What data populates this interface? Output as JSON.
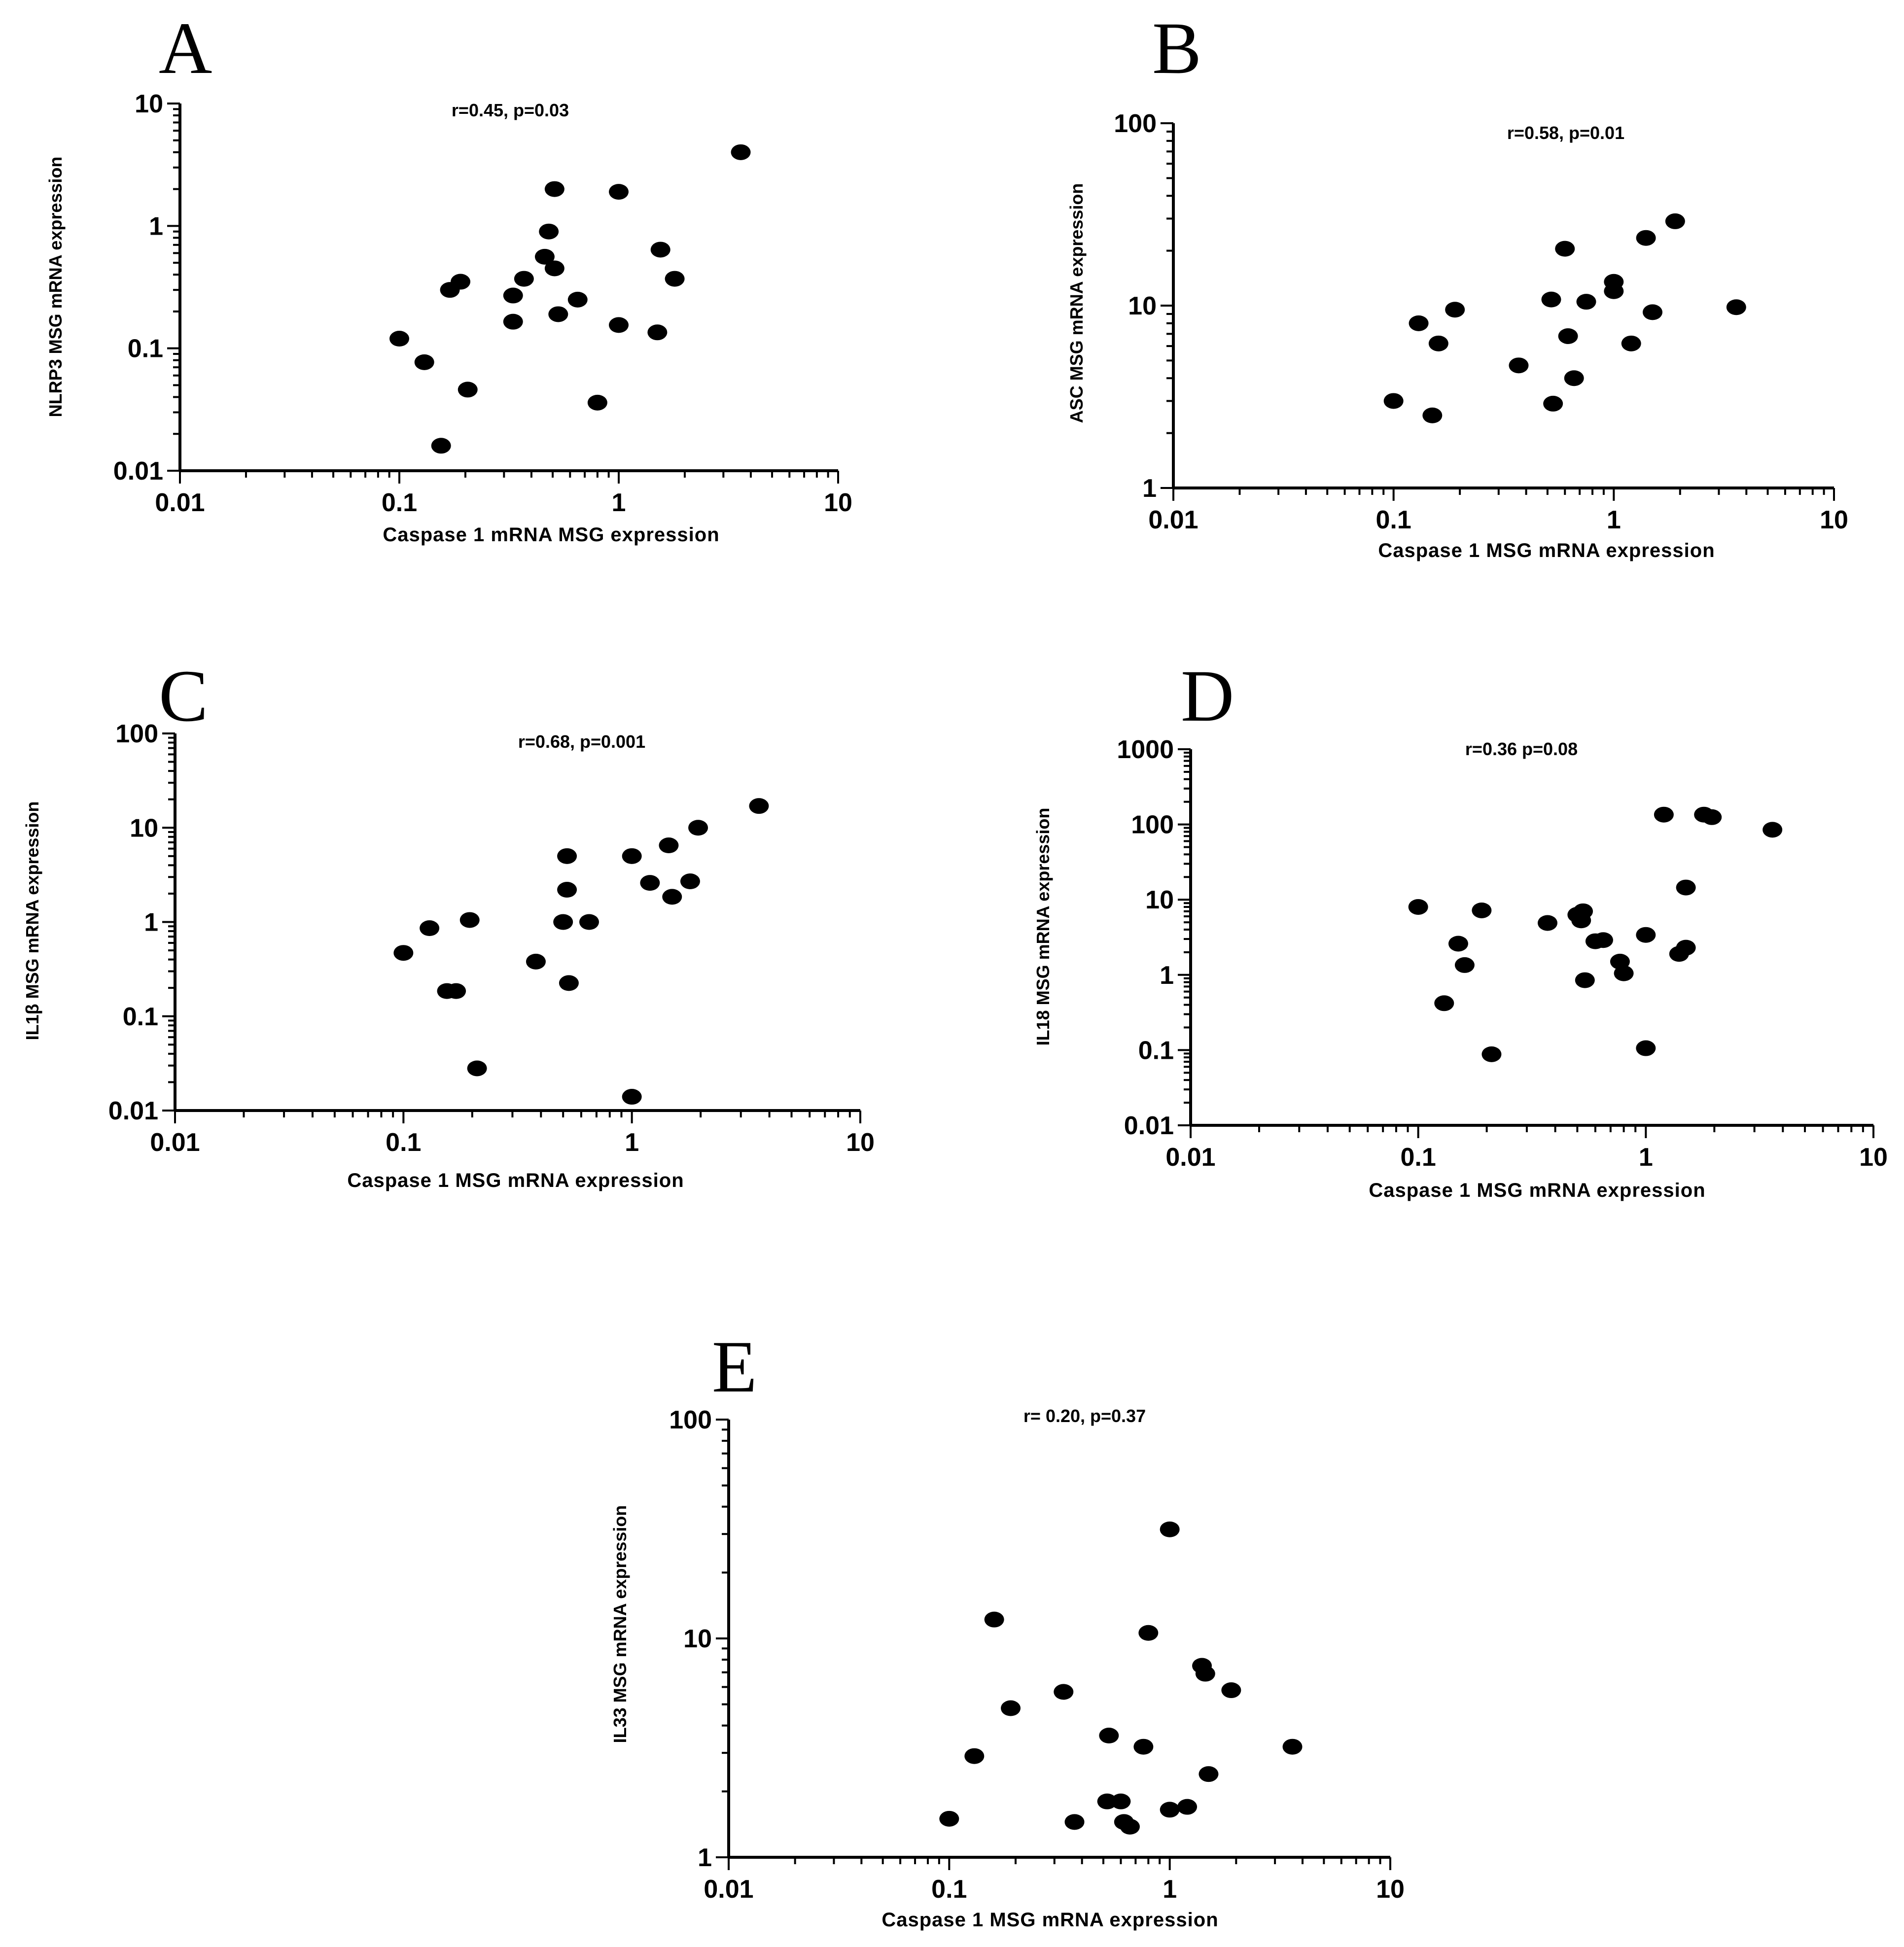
{
  "figure": {
    "panels": [
      "A",
      "B",
      "C",
      "D",
      "E"
    ]
  },
  "chart_data": [
    {
      "panel": "A",
      "type": "scatter",
      "stat_text": "r=0.45,  p=0.03",
      "xlabel": "Caspase 1 mRNA MSG expression",
      "ylabel": "NLRP3 MSG mRNA expression",
      "xscale": "log",
      "yscale": "log",
      "xlim": [
        0.01,
        10
      ],
      "ylim": [
        0.01,
        10
      ],
      "x_ticks": [
        "0.01",
        "0.1",
        "1",
        "10"
      ],
      "y_ticks": [
        "0.01",
        "0.1",
        "1",
        "10"
      ],
      "points": [
        [
          0.1,
          0.12
        ],
        [
          0.13,
          0.077
        ],
        [
          0.155,
          0.016
        ],
        [
          0.17,
          0.3
        ],
        [
          0.19,
          0.35
        ],
        [
          0.205,
          0.046
        ],
        [
          0.33,
          0.27
        ],
        [
          0.33,
          0.165
        ],
        [
          0.37,
          0.37
        ],
        [
          0.46,
          0.56
        ],
        [
          0.48,
          0.9
        ],
        [
          0.51,
          2.0
        ],
        [
          0.51,
          0.45
        ],
        [
          0.53,
          0.19
        ],
        [
          0.65,
          0.25
        ],
        [
          0.8,
          0.036
        ],
        [
          1.0,
          1.9
        ],
        [
          1.0,
          0.155
        ],
        [
          1.5,
          0.135
        ],
        [
          1.55,
          0.64
        ],
        [
          1.8,
          0.37
        ],
        [
          3.6,
          4.0
        ]
      ]
    },
    {
      "panel": "B",
      "type": "scatter",
      "stat_text": "r=0.58, p=0.01",
      "xlabel": "Caspase 1 MSG mRNA expression",
      "ylabel": "ASC MSG mRNA expression",
      "xscale": "log",
      "yscale": "log",
      "xlim": [
        0.01,
        10
      ],
      "ylim": [
        1,
        100
      ],
      "x_ticks": [
        "0.01",
        "0.1",
        "1",
        "10"
      ],
      "y_ticks": [
        "1",
        "10",
        "100"
      ],
      "points": [
        [
          0.1,
          3.0
        ],
        [
          0.13,
          8.0
        ],
        [
          0.15,
          2.5
        ],
        [
          0.16,
          6.2
        ],
        [
          0.19,
          9.5
        ],
        [
          0.37,
          4.7
        ],
        [
          0.52,
          10.8
        ],
        [
          0.53,
          2.9
        ],
        [
          0.6,
          20.5
        ],
        [
          0.62,
          6.8
        ],
        [
          0.66,
          4.0
        ],
        [
          0.75,
          10.5
        ],
        [
          1.0,
          13.5
        ],
        [
          1.0,
          12.0
        ],
        [
          1.2,
          6.2
        ],
        [
          1.4,
          23.5
        ],
        [
          1.5,
          9.2
        ],
        [
          1.9,
          29.0
        ],
        [
          3.6,
          9.8
        ]
      ]
    },
    {
      "panel": "C",
      "type": "scatter",
      "stat_text": "r=0.68, p=0.001",
      "xlabel": "Caspase 1 MSG mRNA expression",
      "ylabel": "IL1β MSG mRNA expression",
      "xscale": "log",
      "yscale": "log",
      "xlim": [
        0.01,
        10
      ],
      "ylim": [
        0.01,
        100
      ],
      "x_ticks": [
        "0.01",
        "0.1",
        "1",
        "10"
      ],
      "y_ticks": [
        "0.01",
        "0.1",
        "1",
        "10",
        "100"
      ],
      "points": [
        [
          0.1,
          0.47
        ],
        [
          0.13,
          0.86
        ],
        [
          0.155,
          0.185
        ],
        [
          0.17,
          0.185
        ],
        [
          0.195,
          1.05
        ],
        [
          0.21,
          0.028
        ],
        [
          0.38,
          0.38
        ],
        [
          0.5,
          1.0
        ],
        [
          0.52,
          5.0
        ],
        [
          0.52,
          2.2
        ],
        [
          0.53,
          0.225
        ],
        [
          0.65,
          1.0
        ],
        [
          1.0,
          5.0
        ],
        [
          1.0,
          0.014
        ],
        [
          1.2,
          2.6
        ],
        [
          1.45,
          6.5
        ],
        [
          1.5,
          1.85
        ],
        [
          1.8,
          2.7
        ],
        [
          1.95,
          10.0
        ],
        [
          3.6,
          17.0
        ]
      ]
    },
    {
      "panel": "D",
      "type": "scatter",
      "stat_text": "r=0.36 p=0.08",
      "xlabel": "Caspase 1 MSG mRNA expression",
      "ylabel": "IL18 MSG mRNA expression",
      "xscale": "log",
      "yscale": "log",
      "xlim": [
        0.01,
        10
      ],
      "ylim": [
        0.01,
        1000
      ],
      "x_ticks": [
        "0.01",
        "0.1",
        "1",
        "10"
      ],
      "y_ticks": [
        "0.01",
        "0.1",
        "1",
        "10",
        "100",
        "1000"
      ],
      "points": [
        [
          0.1,
          8.0
        ],
        [
          0.13,
          0.42
        ],
        [
          0.15,
          2.6
        ],
        [
          0.16,
          1.35
        ],
        [
          0.19,
          7.2
        ],
        [
          0.21,
          0.088
        ],
        [
          0.37,
          4.9
        ],
        [
          0.5,
          6.3
        ],
        [
          0.52,
          5.3
        ],
        [
          0.53,
          7.0
        ],
        [
          0.54,
          0.85
        ],
        [
          0.6,
          2.8
        ],
        [
          0.65,
          2.9
        ],
        [
          0.77,
          1.5
        ],
        [
          0.8,
          1.05
        ],
        [
          1.0,
          3.4
        ],
        [
          1.0,
          0.106
        ],
        [
          1.2,
          135
        ],
        [
          1.4,
          1.9
        ],
        [
          1.5,
          2.3
        ],
        [
          1.5,
          14.5
        ],
        [
          1.8,
          135
        ],
        [
          1.95,
          125
        ],
        [
          3.6,
          85
        ]
      ]
    },
    {
      "panel": "E",
      "type": "scatter",
      "stat_text": "r= 0.20, p=0.37",
      "xlabel": "Caspase 1 MSG mRNA expression",
      "ylabel": "IL33 MSG mRNA expression",
      "xscale": "log",
      "yscale": "log",
      "xlim": [
        0.01,
        10
      ],
      "ylim": [
        1,
        100
      ],
      "x_ticks": [
        "0.01",
        "0.1",
        "1",
        "10"
      ],
      "y_ticks": [
        "1",
        "10",
        "100"
      ],
      "points": [
        [
          0.1,
          1.5
        ],
        [
          0.13,
          2.9
        ],
        [
          0.16,
          12.2
        ],
        [
          0.19,
          4.8
        ],
        [
          0.33,
          5.7
        ],
        [
          0.37,
          1.45
        ],
        [
          0.52,
          1.8
        ],
        [
          0.53,
          3.6
        ],
        [
          0.6,
          1.8
        ],
        [
          0.62,
          1.45
        ],
        [
          0.66,
          1.38
        ],
        [
          0.76,
          3.2
        ],
        [
          0.8,
          10.6
        ],
        [
          1.0,
          1.65
        ],
        [
          1.0,
          31.5
        ],
        [
          1.2,
          1.7
        ],
        [
          1.4,
          7.5
        ],
        [
          1.45,
          6.9
        ],
        [
          1.5,
          2.4
        ],
        [
          1.9,
          5.8
        ],
        [
          3.6,
          3.2
        ]
      ]
    }
  ]
}
